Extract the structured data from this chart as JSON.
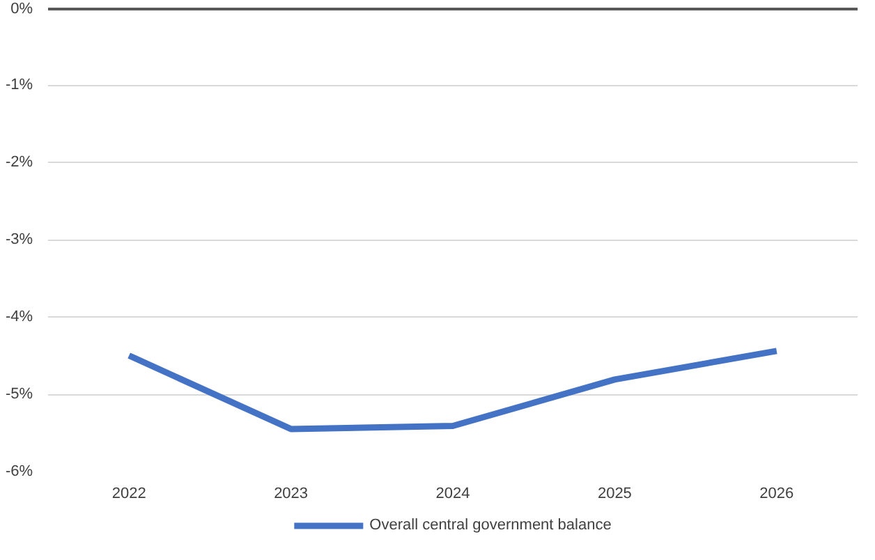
{
  "chart_data": {
    "type": "line",
    "categories": [
      "2022",
      "2023",
      "2024",
      "2025",
      "2026"
    ],
    "series": [
      {
        "name": "Overall central government balance",
        "color": "#4472c4",
        "values": [
          -4.5,
          -5.45,
          -5.41,
          -4.81,
          -4.44
        ]
      }
    ],
    "ylim": [
      -6,
      0
    ],
    "yticks": [
      {
        "value": 0,
        "label": "0%"
      },
      {
        "value": -1,
        "label": "-1%"
      },
      {
        "value": -2,
        "label": "-2%"
      },
      {
        "value": -3,
        "label": "-3%"
      },
      {
        "value": -4,
        "label": "-4%"
      },
      {
        "value": -5,
        "label": "-5%"
      },
      {
        "value": -6,
        "label": "-6%"
      }
    ],
    "grid": "y",
    "legend": "bottom",
    "marker": "none",
    "line_style": "solid"
  }
}
